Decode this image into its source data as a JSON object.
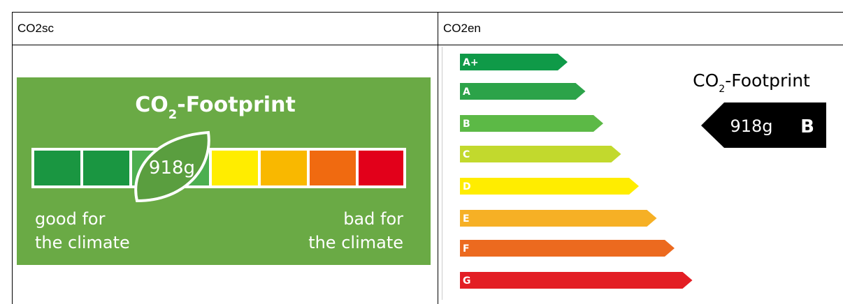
{
  "table": {
    "headers": [
      "CO2sc",
      "CO2en"
    ]
  },
  "co2sc": {
    "title": {
      "main": "CO",
      "sub": "2",
      "rest": "-Footprint"
    },
    "value": "918g",
    "good": [
      "good for",
      "the climate"
    ],
    "bad": [
      "bad for",
      "the climate"
    ]
  },
  "co2en": {
    "title": {
      "main": "CO",
      "sub": "2",
      "rest": "-Footprint"
    },
    "classes": [
      "A+",
      "A",
      "B",
      "C",
      "D",
      "E",
      "F",
      "G"
    ],
    "value": "918g",
    "grade": "B"
  }
}
